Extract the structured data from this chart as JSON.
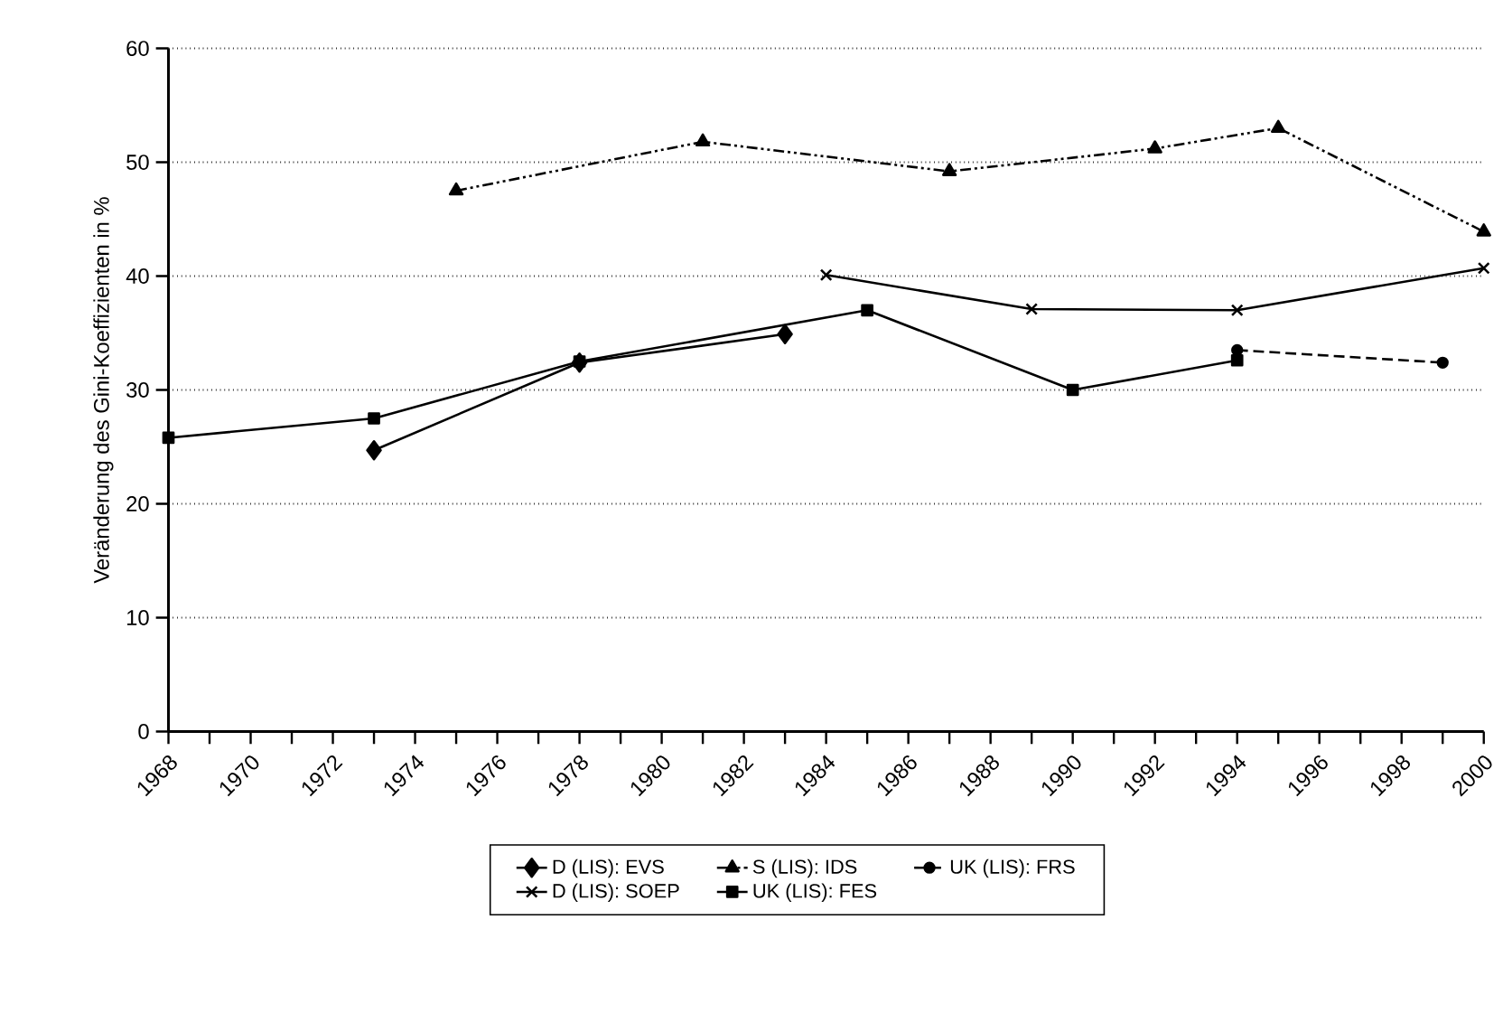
{
  "chart_data": {
    "type": "line",
    "ylabel": "Veränderung des Gini-Koeffizienten in %",
    "xlim": [
      1968,
      2000
    ],
    "ylim": [
      0,
      60
    ],
    "xticks": [
      1968,
      {
        "value": 1969,
        "label": null
      },
      1970,
      {
        "value": 1971,
        "label": null
      },
      1972,
      {
        "value": 1973,
        "label": null
      },
      1974,
      {
        "value": 1975,
        "label": null
      },
      1976,
      {
        "value": 1977,
        "label": null
      },
      1978,
      {
        "value": 1979,
        "label": null
      },
      1980,
      {
        "value": 1981,
        "label": null
      },
      1982,
      {
        "value": 1983,
        "label": null
      },
      1984,
      {
        "value": 1985,
        "label": null
      },
      1986,
      {
        "value": 1987,
        "label": null
      },
      1988,
      {
        "value": 1989,
        "label": null
      },
      1990,
      {
        "value": 1991,
        "label": null
      },
      1992,
      {
        "value": 1993,
        "label": null
      },
      1994,
      {
        "value": 1995,
        "label": null
      },
      1996,
      {
        "value": 1997,
        "label": null
      },
      1998,
      {
        "value": 1999,
        "label": null
      },
      2000
    ],
    "yticks": [
      0,
      10,
      20,
      30,
      40,
      50,
      60
    ],
    "grid": "y",
    "legend": "bottom",
    "series": [
      {
        "name": "D (LIS): EVS",
        "color": "#000000",
        "marker": "diamond",
        "line_style": "solid",
        "x": [
          1973,
          1978,
          1983
        ],
        "values": [
          24.7,
          32.4,
          34.9
        ]
      },
      {
        "name": "S (LIS): IDS",
        "color": "#000000",
        "marker": "triangle",
        "line_style": "dashdotdotted",
        "x": [
          1975,
          1981,
          1987,
          1992,
          1995,
          2000
        ],
        "values": [
          47.5,
          51.8,
          49.2,
          51.2,
          53.0,
          43.9
        ]
      },
      {
        "name": "UK (LIS): FRS",
        "color": "#000000",
        "marker": "circle",
        "line_style": "dashed",
        "x": [
          1994,
          1999
        ],
        "values": [
          33.5,
          32.4
        ]
      },
      {
        "name": "D (LIS): SOEP",
        "color": "#000000",
        "marker": "cross",
        "line_style": "solid",
        "x": [
          1984,
          1989,
          1994,
          2000
        ],
        "values": [
          40.1,
          37.1,
          37.0,
          40.7
        ]
      },
      {
        "name": "UK (LIS): FES",
        "color": "#000000",
        "marker": "square",
        "line_style": "solid",
        "x": [
          1968,
          1973,
          1978,
          1985,
          1990,
          1994
        ],
        "values": [
          25.8,
          27.5,
          32.5,
          37.0,
          30.0,
          32.6
        ]
      }
    ]
  }
}
